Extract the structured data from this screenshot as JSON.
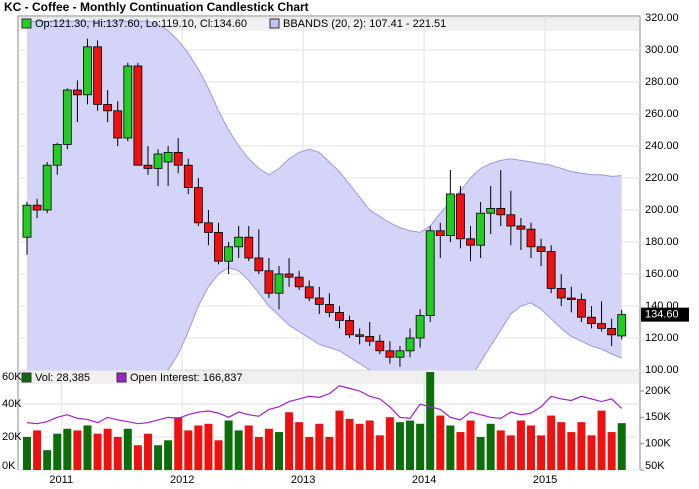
{
  "chart_data": [
    {
      "type": "candlestick",
      "title": "KC - Coffee - Monthly Continuation Candlestick Chart",
      "legend": [
        {
          "label": "Op:121.30, Hi:137.60, Lo:119.10, Cl:134.60",
          "color": "#22cc22"
        },
        {
          "label": "BBANDS (20, 2): 107.41 - 221.51",
          "color": "#c4c4f4"
        }
      ],
      "up_color": "#22cc22",
      "down_color": "#ee1111",
      "band_color": "#d4d4f8",
      "band_line_color": "#9a9ade",
      "open": [
        183,
        203,
        200,
        228,
        241,
        275,
        272,
        302,
        266,
        262,
        245,
        290,
        228,
        226,
        230,
        236,
        228,
        214,
        192,
        186,
        168,
        177,
        183,
        170,
        162,
        148,
        160,
        158,
        152,
        145,
        141,
        136,
        131,
        122,
        121,
        118,
        112,
        108,
        112,
        120,
        134,
        187,
        184,
        210,
        182,
        178,
        198,
        201,
        197,
        190,
        188,
        177,
        174,
        151,
        145,
        144,
        133,
        129,
        126,
        121.3
      ],
      "high": [
        205,
        207,
        230,
        242,
        276,
        281,
        307,
        306,
        275,
        268,
        292,
        292,
        240,
        238,
        240,
        245,
        232,
        220,
        200,
        192,
        180,
        190,
        190,
        188,
        170,
        165,
        170,
        162,
        156,
        152,
        148,
        140,
        134,
        126,
        130,
        122,
        118,
        115,
        126,
        138,
        190,
        192,
        225,
        215,
        190,
        205,
        215,
        225,
        212,
        195,
        192,
        182,
        178,
        160,
        152,
        148,
        140,
        143,
        132,
        137.6
      ],
      "low": [
        172,
        195,
        198,
        222,
        238,
        255,
        266,
        262,
        255,
        240,
        243,
        228,
        222,
        215,
        215,
        223,
        210,
        190,
        178,
        166,
        160,
        170,
        168,
        160,
        145,
        138,
        152,
        150,
        143,
        135,
        133,
        126,
        120,
        116,
        115,
        110,
        104,
        102,
        108,
        114,
        130,
        170,
        180,
        176,
        168,
        170,
        185,
        190,
        178,
        175,
        170,
        165,
        148,
        140,
        136,
        130,
        126,
        124,
        115,
        119.1
      ],
      "close": [
        203,
        200,
        228,
        241,
        275,
        272,
        302,
        266,
        262,
        245,
        290,
        228,
        226,
        235,
        236,
        228,
        214,
        192,
        186,
        168,
        177,
        183,
        170,
        162,
        148,
        160,
        158,
        152,
        145,
        141,
        136,
        131,
        122,
        121,
        118,
        112,
        108,
        112,
        120,
        134,
        187,
        184,
        210,
        182,
        178,
        198,
        201,
        197,
        190,
        188,
        177,
        174,
        151,
        145,
        144,
        133,
        129,
        126,
        122,
        134.6
      ],
      "upper": [
        318,
        318,
        318,
        318,
        318,
        318,
        318,
        318,
        318,
        318,
        318,
        318,
        318,
        316,
        312,
        306,
        298,
        288,
        276,
        262,
        250,
        240,
        232,
        226,
        222,
        226,
        232,
        236,
        238,
        236,
        230,
        224,
        216,
        208,
        200,
        196,
        192,
        189,
        187,
        186,
        190,
        198,
        205,
        212,
        220,
        226,
        229,
        231,
        232,
        231,
        230,
        229,
        228,
        226,
        224,
        223,
        222,
        222,
        221,
        221.51
      ],
      "lower": [
        60,
        62,
        65,
        68,
        70,
        72,
        75,
        78,
        80,
        82,
        85,
        88,
        92,
        96,
        100,
        110,
        124,
        140,
        152,
        160,
        164,
        162,
        156,
        148,
        140,
        134,
        128,
        124,
        120,
        116,
        114,
        112,
        108,
        104,
        100,
        98,
        96,
        94,
        92,
        80,
        70,
        72,
        78,
        85,
        95,
        105,
        115,
        125,
        135,
        140,
        142,
        138,
        132,
        126,
        121,
        118,
        115,
        113,
        110,
        107.41
      ],
      "last_label": "134.60",
      "ylim": [
        100,
        321.25
      ],
      "yticks": [
        {
          "value": 100,
          "label": "100.00"
        },
        {
          "value": 120,
          "label": "120.00"
        },
        {
          "value": 140,
          "label": "140.00"
        },
        {
          "value": 160,
          "label": "160.00"
        },
        {
          "value": 180,
          "label": "180.00"
        },
        {
          "value": 200,
          "label": "200.00"
        },
        {
          "value": 220,
          "label": "220.00"
        },
        {
          "value": 240,
          "label": "240.00"
        },
        {
          "value": 260,
          "label": "260.00"
        },
        {
          "value": 280,
          "label": "280.00"
        },
        {
          "value": 300,
          "label": "300.00"
        },
        {
          "value": 320,
          "label": "320.00"
        }
      ],
      "grid": true
    },
    {
      "type": "bar",
      "categories": [
        null,
        null,
        null,
        "2011",
        null,
        null,
        null,
        null,
        null,
        null,
        null,
        null,
        null,
        null,
        null,
        "2012",
        null,
        null,
        null,
        null,
        null,
        null,
        null,
        null,
        null,
        null,
        null,
        "2013",
        null,
        null,
        null,
        null,
        null,
        null,
        null,
        null,
        null,
        null,
        null,
        "2014",
        null,
        null,
        null,
        null,
        null,
        null,
        null,
        null,
        null,
        null,
        null,
        "2015",
        null,
        null,
        null,
        null,
        null,
        null,
        null,
        null
      ],
      "series": [
        {
          "name": "Vol: 28,385",
          "color": "#0b6e0b",
          "down_color": "#ee1111",
          "values": [
            20000,
            24000,
            12000,
            22000,
            25000,
            24000,
            27000,
            22000,
            25000,
            20000,
            25000,
            15000,
            22000,
            15000,
            18000,
            32000,
            24000,
            27000,
            28000,
            18000,
            30000,
            24000,
            27000,
            20000,
            25000,
            23000,
            35000,
            29000,
            20000,
            28000,
            20000,
            36000,
            31000,
            28000,
            30000,
            21000,
            32000,
            29000,
            30000,
            28000,
            70000,
            33000,
            27000,
            23000,
            30000,
            20000,
            28000,
            24000,
            21000,
            30000,
            27000,
            21000,
            33000,
            29000,
            23000,
            29000,
            21000,
            36000,
            23000,
            28385
          ]
        },
        {
          "name": "Open Interest: 166,837",
          "color": "#a020d0",
          "axis": "y2",
          "values": [
            140000,
            138000,
            142000,
            150000,
            155000,
            148000,
            146000,
            140000,
            150000,
            145000,
            142000,
            138000,
            140000,
            145000,
            150000,
            148000,
            155000,
            160000,
            162000,
            158000,
            150000,
            160000,
            155000,
            152000,
            165000,
            170000,
            180000,
            185000,
            190000,
            188000,
            195000,
            210000,
            205000,
            200000,
            190000,
            185000,
            170000,
            150000,
            148000,
            175000,
            170000,
            165000,
            150000,
            145000,
            160000,
            155000,
            150000,
            148000,
            160000,
            155000,
            158000,
            170000,
            190000,
            185000,
            182000,
            190000,
            185000,
            180000,
            185000,
            166837
          ]
        }
      ],
      "ylim": [
        0,
        60000
      ],
      "yticks": [
        {
          "value": 0,
          "label": "0K"
        },
        {
          "value": 20000,
          "label": "20K"
        },
        {
          "value": 40000,
          "label": "40K"
        },
        {
          "value": 60000,
          "label": "60K"
        }
      ],
      "y2lim": [
        50000,
        238000
      ],
      "y2ticks": [
        {
          "value": 50000,
          "label": "50K"
        },
        {
          "value": 100000,
          "label": "100K"
        },
        {
          "value": 150000,
          "label": "150K"
        },
        {
          "value": 200000,
          "label": "200K"
        }
      ],
      "grid": true
    }
  ]
}
